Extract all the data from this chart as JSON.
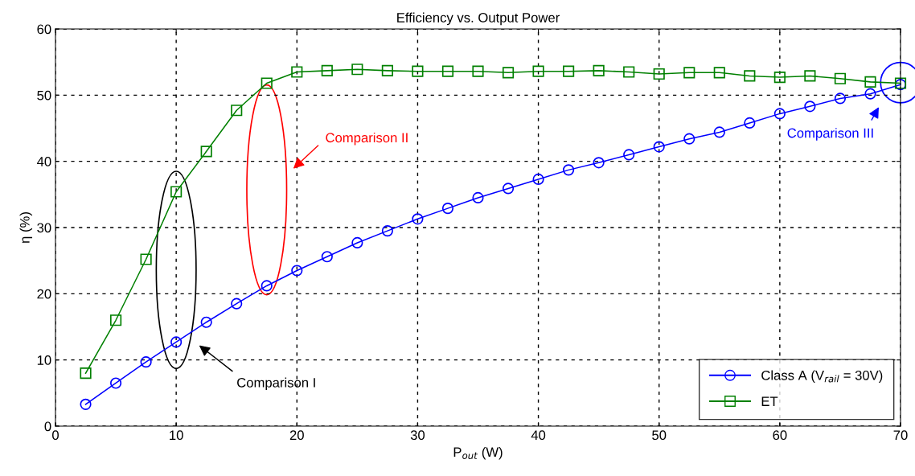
{
  "chart_data": {
    "type": "line",
    "title": "Efficiency vs. Output Power",
    "xlabel": "P$_{out}$ (W)",
    "ylabel": "η (%)",
    "x": [
      2.5,
      5,
      7.5,
      10,
      12.5,
      15,
      17.5,
      20,
      22.5,
      25,
      27.5,
      30,
      32.5,
      35,
      37.5,
      40,
      42.5,
      45,
      47.5,
      50,
      52.5,
      55,
      57.5,
      60,
      62.5,
      65,
      67.5,
      70
    ],
    "series": [
      {
        "name": "Class A (V$_{rail}$ = 30V)",
        "color": "#0000ff",
        "marker": "circle",
        "values": [
          3.3,
          6.5,
          9.7,
          12.7,
          15.7,
          18.5,
          21.2,
          23.5,
          25.6,
          27.7,
          29.5,
          31.3,
          32.9,
          34.5,
          35.9,
          37.3,
          38.7,
          39.8,
          41.0,
          42.2,
          43.4,
          44.4,
          45.8,
          47.2,
          48.3,
          49.5,
          50.2,
          51.6
        ]
      },
      {
        "name": "ET",
        "color": "#008000",
        "marker": "square",
        "values": [
          8.0,
          16.0,
          25.2,
          35.4,
          41.5,
          47.7,
          51.8,
          53.5,
          53.7,
          53.9,
          53.7,
          53.6,
          53.6,
          53.6,
          53.4,
          53.6,
          53.6,
          53.7,
          53.5,
          53.2,
          53.4,
          53.4,
          52.9,
          52.7,
          52.9,
          52.5,
          52.0,
          51.8
        ]
      }
    ],
    "xlim": [
      0,
      70
    ],
    "xticks": [
      0,
      10,
      20,
      30,
      40,
      50,
      60,
      70
    ],
    "ylim": [
      0,
      60
    ],
    "yticks": [
      0,
      10,
      20,
      30,
      40,
      50,
      60
    ],
    "grid": true,
    "legend": "bottom right",
    "line_style": "solid",
    "annotations": [
      "Comparison I",
      "Comparison II",
      "Comparison III"
    ]
  }
}
